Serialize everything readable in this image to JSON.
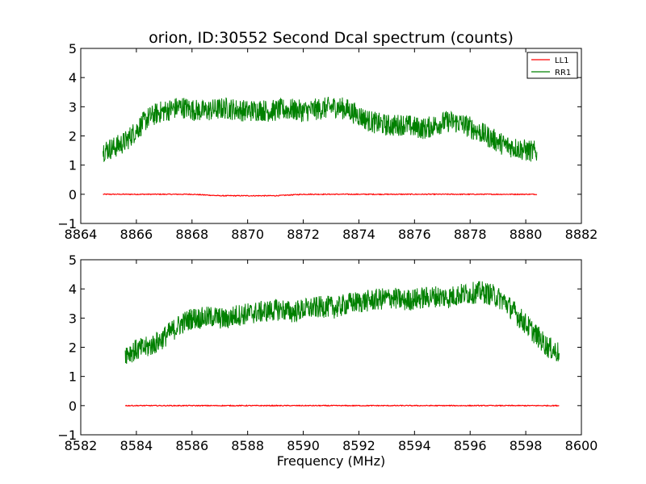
{
  "chart_data": [
    {
      "type": "line",
      "title": "orion, ID:30552 Second Dcal spectrum (counts)",
      "xlabel": "",
      "ylabel": "",
      "xlim": [
        8864,
        8882
      ],
      "ylim": [
        -1,
        5
      ],
      "xticks": [
        "8864",
        "8866",
        "8868",
        "8870",
        "8872",
        "8874",
        "8876",
        "8878",
        "8880",
        "8882"
      ],
      "yticks": [
        "−1",
        "0",
        "1",
        "2",
        "3",
        "4",
        "5"
      ],
      "legend": {
        "placement": "top-right",
        "entries": [
          "LL1",
          "RR1"
        ]
      },
      "series": [
        {
          "name": "LL1",
          "color": "#ff0000",
          "x": [
            8864.8,
            8866,
            8868,
            8869,
            8870,
            8871,
            8872,
            8874,
            8876,
            8878,
            8880.4
          ],
          "values": [
            0,
            0,
            0,
            -0.05,
            -0.05,
            -0.05,
            0,
            0,
            0,
            0,
            0
          ]
        },
        {
          "name": "RR1",
          "color": "#008000",
          "x": [
            8864.8,
            8865.2,
            8865.6,
            8866.0,
            8866.4,
            8866.8,
            8867.2,
            8867.6,
            8868.0,
            8868.4,
            8868.8,
            8869.2,
            8869.6,
            8870.0,
            8870.4,
            8870.8,
            8871.2,
            8871.6,
            8872.0,
            8872.4,
            8872.8,
            8873.2,
            8873.6,
            8874.0,
            8874.4,
            8874.8,
            8875.2,
            8875.6,
            8876.0,
            8876.4,
            8876.8,
            8877.2,
            8877.6,
            8878.0,
            8878.4,
            8878.8,
            8879.2,
            8879.6,
            8880.0,
            8880.4
          ],
          "values": [
            1.5,
            1.6,
            1.8,
            2.2,
            2.6,
            2.8,
            2.9,
            3.0,
            2.9,
            2.85,
            2.9,
            2.95,
            2.9,
            2.85,
            2.9,
            2.85,
            2.9,
            2.9,
            2.85,
            2.9,
            2.95,
            3.0,
            2.9,
            2.7,
            2.5,
            2.4,
            2.35,
            2.4,
            2.3,
            2.25,
            2.4,
            2.5,
            2.45,
            2.3,
            2.1,
            1.9,
            1.7,
            1.6,
            1.5,
            1.45
          ]
        }
      ]
    },
    {
      "type": "line",
      "title": "",
      "xlabel": "Frequency (MHz)",
      "ylabel": "",
      "xlim": [
        8582,
        8600
      ],
      "ylim": [
        -1,
        5
      ],
      "xticks": [
        "8582",
        "8584",
        "8586",
        "8588",
        "8590",
        "8592",
        "8594",
        "8596",
        "8598",
        "8600"
      ],
      "yticks": [
        "−1",
        "0",
        "1",
        "2",
        "3",
        "4",
        "5"
      ],
      "series": [
        {
          "name": "LL1",
          "color": "#ff0000",
          "x": [
            8583.6,
            8586,
            8588,
            8590,
            8592,
            8594,
            8596,
            8598,
            8599.2
          ],
          "values": [
            0,
            0,
            0,
            0,
            0,
            0,
            0,
            0,
            0
          ]
        },
        {
          "name": "RR1",
          "color": "#008000",
          "x": [
            8583.6,
            8584.0,
            8584.4,
            8584.8,
            8585.2,
            8585.6,
            8586.0,
            8586.4,
            8586.8,
            8587.2,
            8587.6,
            8588.0,
            8588.4,
            8588.8,
            8589.2,
            8589.6,
            8590.0,
            8590.4,
            8590.8,
            8591.2,
            8591.6,
            8592.0,
            8592.4,
            8592.8,
            8593.2,
            8593.6,
            8594.0,
            8594.4,
            8594.8,
            8595.2,
            8595.6,
            8596.0,
            8596.4,
            8596.8,
            8597.2,
            8597.6,
            8598.0,
            8598.4,
            8598.8,
            8599.2
          ],
          "values": [
            1.8,
            1.9,
            2.0,
            2.2,
            2.5,
            2.8,
            3.0,
            3.0,
            3.05,
            2.95,
            3.1,
            3.15,
            3.2,
            3.25,
            3.3,
            3.2,
            3.3,
            3.35,
            3.4,
            3.35,
            3.5,
            3.55,
            3.6,
            3.65,
            3.7,
            3.6,
            3.65,
            3.7,
            3.75,
            3.7,
            3.8,
            3.85,
            3.9,
            3.8,
            3.6,
            3.2,
            2.8,
            2.4,
            2.0,
            1.8
          ]
        }
      ]
    }
  ]
}
